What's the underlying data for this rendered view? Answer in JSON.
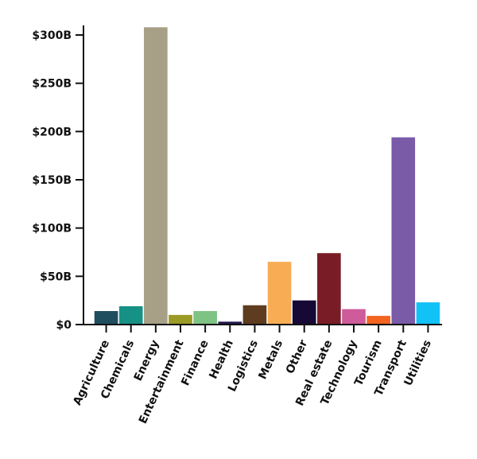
{
  "chart_data": {
    "type": "bar",
    "categories": [
      "Agriculture",
      "Chemicals",
      "Energy",
      "Entertainment",
      "Finance",
      "Health",
      "Logistics",
      "Metals",
      "Other",
      "Real estate",
      "Technology",
      "Tourism",
      "Transport",
      "Utilities"
    ],
    "values": [
      14,
      19,
      308,
      10,
      14,
      3,
      20,
      65,
      25,
      74,
      16,
      9,
      194,
      23
    ],
    "colors": [
      "#1f4e5f",
      "#169185",
      "#a89f87",
      "#9b9a26",
      "#7ec384",
      "#241852",
      "#5e3c1f",
      "#f8ad55",
      "#160935",
      "#7a1c26",
      "#ce5b9a",
      "#f2641f",
      "#7a5ba8",
      "#12c1f6"
    ],
    "yticks": [
      0,
      50,
      100,
      150,
      200,
      250,
      300
    ],
    "ytick_labels": [
      "$0",
      "$50B",
      "$100B",
      "$150B",
      "$200B",
      "$250B",
      "$300B"
    ],
    "ylim": [
      0,
      310
    ],
    "xlabel": "",
    "ylabel": "",
    "title": ""
  }
}
